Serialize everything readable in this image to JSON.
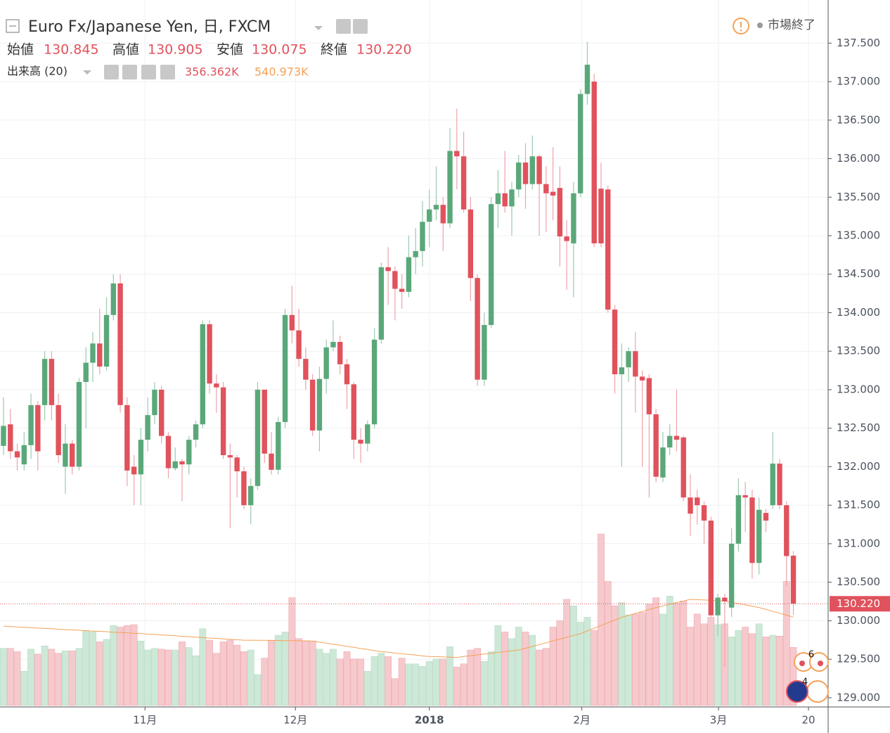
{
  "header": {
    "symbol": "Euro Fx/Japanese Yen, 日, FXCM",
    "status": "市場終了",
    "ohlc": [
      {
        "label": "始値",
        "value": "130.845"
      },
      {
        "label": "高値",
        "value": "130.905"
      },
      {
        "label": "安値",
        "value": "130.075"
      },
      {
        "label": "終値",
        "value": "130.220"
      }
    ],
    "volume_label": "出来高 (20)",
    "volume_values": [
      "356.362K",
      "540.973K"
    ],
    "markers": [
      "6",
      "4"
    ]
  },
  "chart_data": {
    "type": "candlestick",
    "open": [
      132.27,
      132.55,
      132.2,
      132.03,
      132.28,
      132.8,
      132.8,
      133.4,
      132.8,
      132,
      132.3,
      132,
      133.1,
      133.35,
      133.6,
      133.3,
      133.97,
      134.38,
      132.8,
      132,
      131.9,
      132.35,
      132.67,
      133,
      132.4,
      131.98,
      132.07,
      132.03,
      132.35,
      132.55,
      133.85,
      133.08,
      133.03,
      132.15,
      132.12,
      131.94,
      131.5,
      131.75,
      133,
      132.17,
      131.96,
      132.58,
      133.97,
      133.77,
      133.4,
      133.13,
      132.47,
      133.14,
      133.55,
      133.62,
      133.33,
      133.07,
      132.35,
      132.3,
      132.55,
      133.65,
      134.59,
      134.54,
      134.31,
      134.27,
      134.72,
      134.8,
      135.18,
      135.34,
      135.4,
      135.16,
      136.1,
      136.03,
      135.34,
      134.45,
      133.13,
      133.84,
      135.41,
      135.55,
      135.38,
      135.6,
      135.95,
      135.67,
      136.03,
      135.67,
      135.57,
      135.62,
      134.99,
      134.9,
      135.55,
      136.84,
      137,
      135.61,
      135.6,
      134.04,
      133.2,
      133.29,
      133.5,
      133.17,
      133.15,
      132.68,
      131.86,
      132.25,
      132.4,
      132.38,
      131.6,
      131.6,
      131.5,
      131.3,
      130.07,
      130.3,
      130.17,
      131,
      131.63,
      131.6,
      130.75,
      131.4,
      131.5,
      132.04,
      131.5,
      130.845
    ],
    "high": [
      132.9,
      132.75,
      132.3,
      132.45,
      132.95,
      132.85,
      133.5,
      133.5,
      132.95,
      132.55,
      132.35,
      133.15,
      133.55,
      133.75,
      134.05,
      134.2,
      134.5,
      134.5,
      132.9,
      132.15,
      132.5,
      132.9,
      133.1,
      133.05,
      132.45,
      132.25,
      132.1,
      132.4,
      132.6,
      133.9,
      133.9,
      133.2,
      133.1,
      132.3,
      132.15,
      132,
      131.85,
      133.1,
      133,
      132.45,
      132.65,
      134.05,
      134.35,
      134.05,
      133.55,
      133.2,
      133.3,
      133.65,
      133.9,
      133.7,
      133.4,
      133.1,
      132.5,
      132.6,
      133.8,
      134.65,
      134.85,
      134.6,
      134.5,
      135,
      135.1,
      135.45,
      135.6,
      135.9,
      135.5,
      136.4,
      136.65,
      136.35,
      135.5,
      134.5,
      134,
      135.5,
      135.85,
      136.1,
      135.7,
      136.05,
      136.2,
      136.3,
      136.05,
      135.9,
      136.15,
      135.9,
      135.2,
      135.7,
      136.9,
      137.52,
      137.1,
      135.95,
      135.65,
      134.1,
      133.6,
      133.55,
      133.75,
      133.25,
      133.2,
      132.75,
      132.45,
      132.55,
      133,
      132.4,
      131.9,
      131.7,
      131.55,
      131.35,
      130.35,
      130.35,
      131.2,
      131.85,
      131.8,
      131.7,
      131.6,
      131.45,
      132.45,
      132.1,
      131.55,
      130.905
    ],
    "low": [
      132.15,
      132.1,
      131.95,
      131.95,
      132.1,
      131.95,
      132.6,
      132.6,
      132.05,
      131.65,
      131.9,
      131.95,
      132.5,
      133.1,
      133.2,
      133.25,
      133.9,
      132.7,
      131.75,
      131.5,
      131.5,
      132.2,
      132.55,
      132.3,
      131.85,
      131.95,
      131.55,
      131.9,
      132.25,
      132.5,
      132.95,
      132.7,
      132.1,
      131.2,
      131.6,
      131.45,
      131.25,
      131.7,
      132.05,
      131.9,
      131.9,
      132.5,
      133.6,
      133.3,
      133,
      132.4,
      132.2,
      132.95,
      133.5,
      133.2,
      132.75,
      132.1,
      132.05,
      132.2,
      132.5,
      133.6,
      134.1,
      133.9,
      134.05,
      134.2,
      134.5,
      134.6,
      134.85,
      135.2,
      134.8,
      135.1,
      135.6,
      135.3,
      134.15,
      133.05,
      133.05,
      133.8,
      135.1,
      135.3,
      135,
      135.5,
      135.35,
      135.6,
      135,
      135.05,
      135.2,
      134.6,
      134.3,
      134.2,
      135.5,
      136.7,
      134.85,
      134.85,
      134,
      132.95,
      132,
      133.1,
      132.7,
      132,
      131.6,
      131.8,
      131.8,
      132.15,
      132.2,
      131.55,
      131.1,
      131.25,
      131,
      130.05,
      129.8,
      129.4,
      130.05,
      130.9,
      131.15,
      130.55,
      130.6,
      131.15,
      131.45,
      131.45,
      130.45,
      130.075
    ],
    "close": [
      132.53,
      132.2,
      132.12,
      132.28,
      132.8,
      132.2,
      133.4,
      132.8,
      132.15,
      132.3,
      132,
      133.1,
      133.35,
      133.6,
      133.3,
      133.97,
      134.38,
      132.8,
      131.95,
      131.9,
      132.35,
      132.67,
      133,
      132.4,
      131.98,
      132.07,
      132.03,
      132.35,
      132.55,
      133.85,
      133.08,
      133.03,
      132.15,
      132.12,
      131.94,
      131.5,
      131.75,
      133,
      132.17,
      131.96,
      132.58,
      133.97,
      133.77,
      133.4,
      133.13,
      132.47,
      133.14,
      133.55,
      133.62,
      133.33,
      133.07,
      132.35,
      132.3,
      132.55,
      133.65,
      134.59,
      134.54,
      134.31,
      134.27,
      134.72,
      134.8,
      135.18,
      135.34,
      135.4,
      135.16,
      136.1,
      136.03,
      135.34,
      134.45,
      133.13,
      133.84,
      135.41,
      135.55,
      135.38,
      135.6,
      135.95,
      135.67,
      136.03,
      135.67,
      135.55,
      135.52,
      134.99,
      134.93,
      135.55,
      136.84,
      137.22,
      134.9,
      134.9,
      134.04,
      133.2,
      133.29,
      133.5,
      133.17,
      133.12,
      132.68,
      131.87,
      132.25,
      132.4,
      132.35,
      131.6,
      131.39,
      131.5,
      131.3,
      130.07,
      130.3,
      130.25,
      131,
      131.63,
      131.6,
      130.75,
      131.44,
      131.3,
      132.04,
      131.5,
      130.84,
      130.22
    ],
    "volume": [
      350,
      350,
      330,
      210,
      345,
      315,
      365,
      345,
      320,
      335,
      335,
      350,
      460,
      450,
      390,
      405,
      490,
      480,
      490,
      495,
      395,
      340,
      350,
      345,
      340,
      340,
      390,
      355,
      305,
      470,
      400,
      320,
      390,
      400,
      370,
      330,
      340,
      190,
      290,
      400,
      430,
      450,
      660,
      410,
      395,
      395,
      345,
      320,
      345,
      285,
      330,
      285,
      285,
      210,
      300,
      320,
      300,
      165,
      290,
      255,
      255,
      240,
      270,
      285,
      285,
      360,
      235,
      255,
      340,
      350,
      270,
      330,
      490,
      450,
      410,
      480,
      450,
      430,
      340,
      350,
      480,
      520,
      650,
      610,
      510,
      540,
      460,
      1050,
      760,
      610,
      630,
      555,
      560,
      570,
      620,
      660,
      560,
      670,
      625,
      640,
      480,
      560,
      500,
      540,
      495,
      500,
      420,
      460,
      480,
      440,
      500,
      420,
      430,
      425,
      760,
      356.362
    ],
    "volume_ma": [
      486,
      484,
      481,
      479,
      477,
      474,
      472,
      470,
      467,
      465,
      463,
      461,
      458,
      456,
      454,
      452,
      449,
      447,
      445,
      442,
      440,
      437,
      435,
      432,
      429,
      427,
      424,
      421,
      419,
      416,
      413,
      411,
      408,
      405,
      403,
      400,
      400,
      399,
      399,
      398,
      398,
      397,
      397,
      396,
      396,
      395,
      388,
      382,
      375,
      369,
      362,
      356,
      349,
      343,
      336,
      330,
      326,
      321,
      317,
      313,
      309,
      304,
      300,
      299,
      298,
      296,
      295,
      300,
      305,
      310,
      315,
      320,
      325,
      330,
      335,
      340,
      351,
      362,
      373,
      384,
      396,
      407,
      418,
      429,
      440,
      457,
      473,
      490,
      507,
      523,
      540,
      552,
      564,
      576,
      588,
      600,
      610,
      620,
      630,
      640,
      650,
      648,
      646,
      644,
      642,
      640,
      632,
      624,
      616,
      608,
      600,
      588,
      576,
      565,
      553,
      540.973
    ],
    "ylim": [
      128.88,
      138.06
    ],
    "yticks": [
      {
        "value": 129,
        "label": "129.000"
      },
      {
        "value": 129.5,
        "label": "129.500"
      },
      {
        "value": 130,
        "label": "130.000"
      },
      {
        "value": 130.5,
        "label": "130.500"
      },
      {
        "value": 131,
        "label": "131.000"
      },
      {
        "value": 131.5,
        "label": "131.500"
      },
      {
        "value": 132,
        "label": "132.000"
      },
      {
        "value": 132.5,
        "label": "132.500"
      },
      {
        "value": 133,
        "label": "133.000"
      },
      {
        "value": 133.5,
        "label": "133.500"
      },
      {
        "value": 134,
        "label": "134.000"
      },
      {
        "value": 134.5,
        "label": "134.500"
      },
      {
        "value": 135,
        "label": "135.000"
      },
      {
        "value": 135.5,
        "label": "135.500"
      },
      {
        "value": 136,
        "label": "136.000"
      },
      {
        "value": 136.5,
        "label": "136.500"
      },
      {
        "value": 137,
        "label": "137.000"
      },
      {
        "value": 137.5,
        "label": "137.500"
      }
    ],
    "xlim": [
      -0.51,
      120.06
    ],
    "xticks": [
      {
        "value": 20.6,
        "label": "11月"
      },
      {
        "value": 42.5,
        "label": "12月"
      },
      {
        "value": 62,
        "label": "2018"
      },
      {
        "value": 84.2,
        "label": "2月"
      },
      {
        "value": 104.1,
        "label": "3月"
      },
      {
        "value": 117.2,
        "label": "20"
      }
    ],
    "volume_ylim": [
      0,
      1300
    ],
    "price_line": {
      "value": 130.22,
      "label": "130.220"
    },
    "grid": true,
    "up_color": "#5aa879",
    "down_color": "#e0525c",
    "volume_up_color": "#cde8d7",
    "volume_down_color": "#f6c9cd",
    "ma_color": "#f5a257"
  }
}
